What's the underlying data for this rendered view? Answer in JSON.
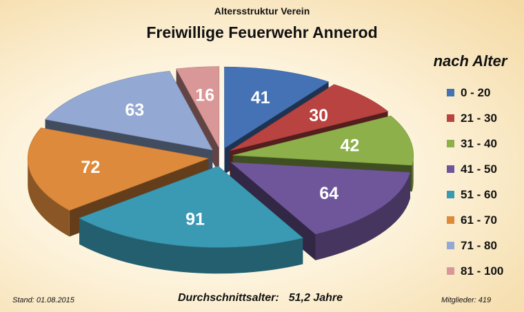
{
  "chart_data": {
    "type": "pie",
    "subtitle": "Altersstruktur Verein",
    "title": "Freiwillige Feuerwehr Annerod",
    "legend_title": "nach Alter",
    "legend_position": "right",
    "categories": [
      "0 - 20",
      "21 - 30",
      "31 - 40",
      "41 - 50",
      "51 - 60",
      "61 - 70",
      "71 - 80",
      "81 - 100"
    ],
    "values": [
      41,
      30,
      42,
      64,
      91,
      72,
      63,
      16
    ],
    "colors": [
      "#4472b4",
      "#b94340",
      "#8db04a",
      "#6f569a",
      "#3a9ab4",
      "#de8a3c",
      "#93a9d3",
      "#d99897"
    ],
    "exploded": true,
    "three_d": true
  },
  "footer": {
    "stand": "Stand: 01.08.2015",
    "average_label": "Durchschnittsalter:",
    "average_value": "51,2 Jahre",
    "members": "Mitglieder: 419"
  }
}
